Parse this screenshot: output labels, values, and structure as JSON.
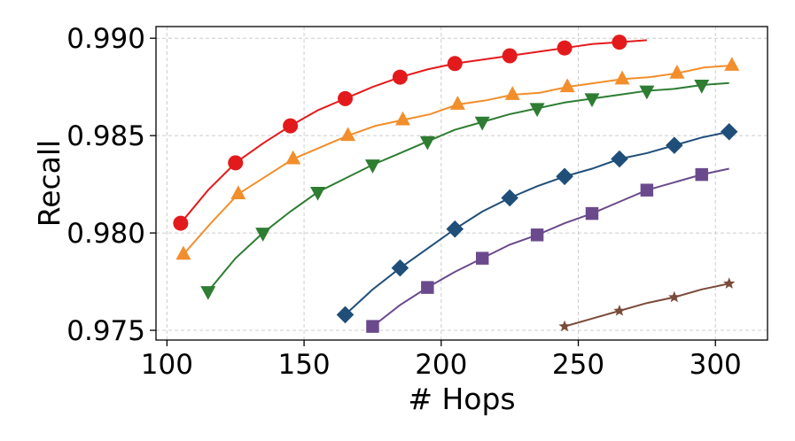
{
  "chart_data": {
    "type": "line",
    "title": "",
    "xlabel": "# Hops",
    "ylabel": "Recall",
    "xlim": [
      96,
      319
    ],
    "ylim": [
      0.9745,
      0.9906
    ],
    "xticks": [
      100,
      150,
      200,
      250,
      300
    ],
    "yticks": [
      0.975,
      0.98,
      0.985,
      0.99
    ],
    "xtick_labels": [
      "100",
      "150",
      "200",
      "250",
      "300"
    ],
    "ytick_labels": [
      "0.975",
      "0.980",
      "0.985",
      "0.990"
    ],
    "grid": true,
    "legend": "none",
    "series": [
      {
        "color": "#e31a1c",
        "marker": "circle",
        "x": [
          105,
          115,
          125,
          135,
          145,
          155,
          165,
          175,
          185,
          195,
          205,
          215,
          225,
          235,
          245,
          255,
          265,
          275
        ],
        "y": [
          0.9805,
          0.9822,
          0.9836,
          0.9846,
          0.9855,
          0.9863,
          0.9869,
          0.9875,
          0.988,
          0.9884,
          0.9887,
          0.9889,
          0.9891,
          0.9893,
          0.9895,
          0.9897,
          0.9898,
          0.9899
        ],
        "marker_every": 2
      },
      {
        "color": "#f28e2b",
        "marker": "triangle-up",
        "x": [
          106,
          116,
          126,
          136,
          146,
          156,
          166,
          176,
          186,
          196,
          206,
          216,
          226,
          236,
          246,
          256,
          266,
          276,
          286,
          296,
          306
        ],
        "y": [
          0.9789,
          0.9805,
          0.982,
          0.9829,
          0.9838,
          0.9844,
          0.985,
          0.9855,
          0.9858,
          0.9861,
          0.9866,
          0.9868,
          0.9871,
          0.9872,
          0.9875,
          0.9877,
          0.9879,
          0.988,
          0.9882,
          0.9885,
          0.9886
        ],
        "marker_every": 2
      },
      {
        "color": "#2e7d32",
        "marker": "triangle-down",
        "x": [
          115,
          125,
          135,
          145,
          155,
          165,
          175,
          185,
          195,
          205,
          215,
          225,
          235,
          245,
          255,
          265,
          275,
          285,
          295,
          305
        ],
        "y": [
          0.977,
          0.9787,
          0.98,
          0.9811,
          0.9821,
          0.9828,
          0.9835,
          0.9841,
          0.9847,
          0.9853,
          0.9857,
          0.9861,
          0.9864,
          0.9867,
          0.9869,
          0.9871,
          0.9873,
          0.9874,
          0.9876,
          0.9877
        ],
        "marker_every": 2
      },
      {
        "color": "#1f4e79",
        "marker": "diamond",
        "x": [
          165,
          175,
          185,
          195,
          205,
          215,
          225,
          235,
          245,
          255,
          265,
          275,
          285,
          295,
          305
        ],
        "y": [
          0.9758,
          0.9771,
          0.9782,
          0.9792,
          0.9802,
          0.9811,
          0.9818,
          0.9824,
          0.9829,
          0.9833,
          0.9838,
          0.9841,
          0.9845,
          0.9849,
          0.9852
        ],
        "marker_every": 2
      },
      {
        "color": "#6a4a8c",
        "marker": "square",
        "x": [
          175,
          185,
          195,
          205,
          215,
          225,
          235,
          245,
          255,
          265,
          275,
          285,
          295,
          305
        ],
        "y": [
          0.9752,
          0.9763,
          0.9772,
          0.978,
          0.9787,
          0.9794,
          0.9799,
          0.9805,
          0.981,
          0.9816,
          0.9822,
          0.9826,
          0.983,
          0.9833
        ],
        "marker_every": 2
      },
      {
        "color": "#7a4a3a",
        "marker": "star",
        "x": [
          245,
          255,
          265,
          275,
          285,
          295,
          305
        ],
        "y": [
          0.9752,
          0.9756,
          0.976,
          0.9764,
          0.9767,
          0.9771,
          0.9774
        ],
        "marker_every": 2
      }
    ]
  }
}
